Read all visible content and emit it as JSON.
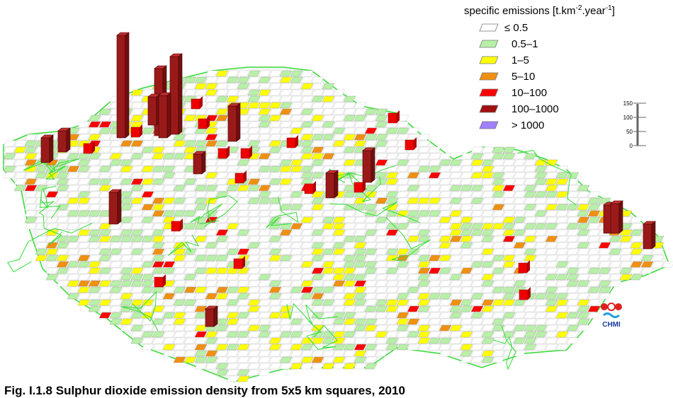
{
  "legend": {
    "title": {
      "text": "specific emissions [t.km",
      "exp1": "-2",
      "mid": ".year",
      "exp2": "-1",
      "end": "]"
    },
    "entries": [
      "≤ 0.5",
      "0.5–1",
      "1–5",
      "5–10",
      "10–100",
      "100–1000",
      "> 1000"
    ]
  },
  "scale": {
    "ticks": [
      150,
      100,
      50,
      0
    ]
  },
  "logo": "CHMI",
  "caption": "Fig. I.1.8  Sulphur dioxide emission density from 5x5 km squares, 2010"
}
